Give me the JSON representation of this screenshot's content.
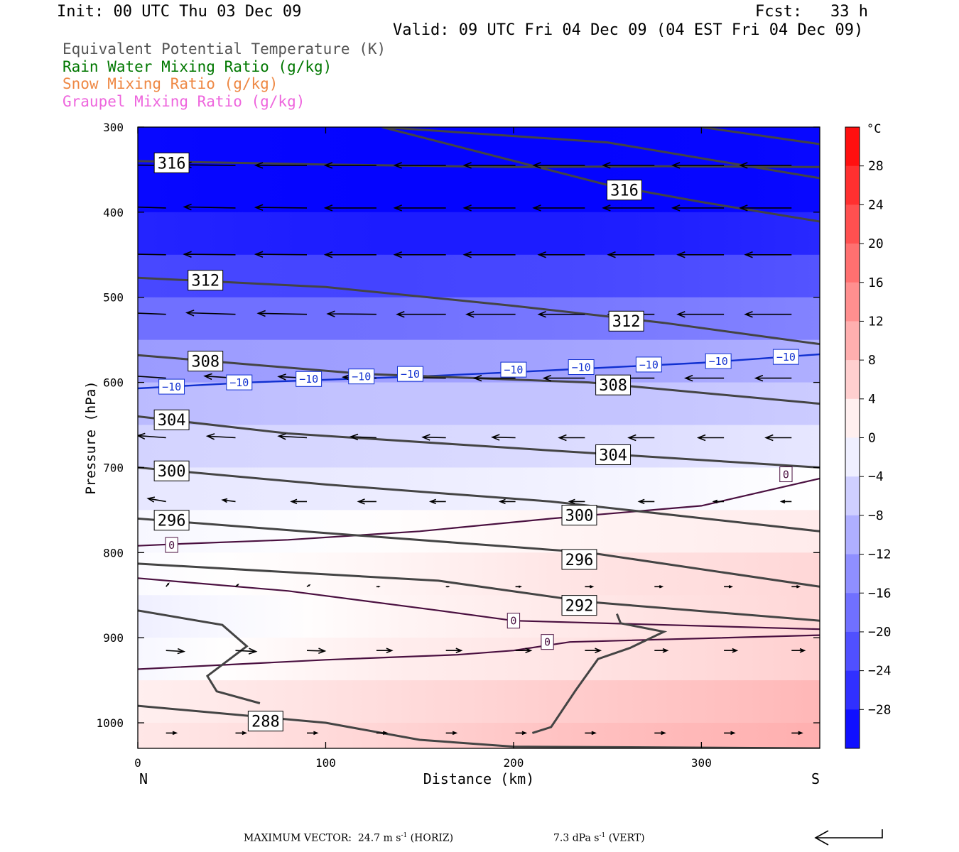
{
  "header": {
    "init": "Init: 00 UTC Thu 03 Dec 09",
    "fcst": "Fcst:   33 h",
    "valid": "Valid: 09 UTC Fri 04 Dec 09 (04 EST Fri 04 Dec 09)"
  },
  "legend": [
    {
      "label": "Equivalent Potential Temperature (K)",
      "color": "#555555"
    },
    {
      "label": "Rain Water Mixing Ratio (g/kg)",
      "color": "#007700"
    },
    {
      "label": "Snow Mixing Ratio (g/kg)",
      "color": "#ee8844"
    },
    {
      "label": "Graupel Mixing Ratio (g/kg)",
      "color": "#ee66dd"
    }
  ],
  "colorbar": {
    "unit": "°C",
    "ticks": [
      "28",
      "24",
      "20",
      "16",
      "12",
      "8",
      "4",
      "0",
      "−4",
      "−8",
      "−12",
      "−16",
      "−20",
      "−24",
      "−28"
    ],
    "range": [
      -32,
      32
    ],
    "step": 4
  },
  "footer": {
    "max_vector": "MAXIMUM VECTOR:",
    "horiz_value": "24.7 m s",
    "horiz_unit": "(HORIZ)",
    "vert_value": "7.3 dPa s",
    "vert_unit": "(VERT)",
    "exponent": "-1"
  },
  "chart_data": {
    "type": "cross-section",
    "xlabel": "Distance (km)",
    "ylabel": "Pressure (hPa)",
    "x_ticks": [
      0,
      100,
      200,
      300
    ],
    "y_ticks": [
      300,
      400,
      500,
      600,
      700,
      800,
      900,
      1000
    ],
    "xlim": [
      0,
      363
    ],
    "ylim": [
      300,
      1030
    ],
    "left_end_label": "N",
    "right_end_label": "S",
    "temperature_field": {
      "x": [
        0,
        120,
        240,
        363
      ],
      "rows": [
        {
          "p": 300,
          "t": [
            -32,
            -32,
            -32,
            -32
          ]
        },
        {
          "p": 400,
          "t": [
            -30,
            -31,
            -31,
            -30
          ]
        },
        {
          "p": 450,
          "t": [
            -25,
            -26,
            -26,
            -24
          ]
        },
        {
          "p": 500,
          "t": [
            -21,
            -21,
            -20,
            -19
          ]
        },
        {
          "p": 550,
          "t": [
            -15,
            -15,
            -14,
            -12
          ]
        },
        {
          "p": 600,
          "t": [
            -10,
            -9,
            -9,
            -8
          ]
        },
        {
          "p": 650,
          "t": [
            -7,
            -6,
            -6,
            -5
          ]
        },
        {
          "p": 700,
          "t": [
            -4,
            -4,
            -3,
            -1
          ]
        },
        {
          "p": 750,
          "t": [
            -2,
            -1,
            0,
            1
          ]
        },
        {
          "p": 800,
          "t": [
            0,
            1,
            3,
            4
          ]
        },
        {
          "p": 850,
          "t": [
            -1,
            1,
            4,
            6
          ]
        },
        {
          "p": 900,
          "t": [
            -3,
            1,
            2,
            4
          ]
        },
        {
          "p": 950,
          "t": [
            1,
            3,
            5,
            8
          ]
        },
        {
          "p": 1000,
          "t": [
            3,
            5,
            8,
            10
          ]
        },
        {
          "p": 1030,
          "t": [
            3,
            5,
            8,
            10
          ]
        }
      ]
    },
    "theta_e_lines": [
      {
        "label": "316",
        "points": [
          [
            0,
            340
          ],
          [
            100,
            344
          ],
          [
            200,
            347
          ],
          [
            280,
            346
          ],
          [
            363,
            347
          ]
        ],
        "labels_at": [
          [
            18,
            342
          ]
        ]
      },
      {
        "label": "316",
        "points": [
          [
            130,
            300
          ],
          [
            250,
            368
          ],
          [
            300,
            388
          ],
          [
            363,
            411
          ]
        ],
        "labels_at": [
          [
            259,
            374
          ]
        ]
      },
      {
        "label": "",
        "points": [
          [
            130,
            300
          ],
          [
            250,
            318
          ],
          [
            363,
            360
          ]
        ],
        "labels_at": []
      },
      {
        "label": "",
        "points": [
          [
            300,
            300
          ],
          [
            363,
            320
          ]
        ],
        "labels_at": []
      },
      {
        "label": "312",
        "points": [
          [
            0,
            477
          ],
          [
            100,
            488
          ],
          [
            200,
            510
          ],
          [
            280,
            530
          ],
          [
            363,
            555
          ]
        ],
        "labels_at": [
          [
            36,
            480
          ],
          [
            260,
            528
          ]
        ]
      },
      {
        "label": "308",
        "points": [
          [
            0,
            568
          ],
          [
            120,
            590
          ],
          [
            240,
            600
          ],
          [
            363,
            625
          ]
        ],
        "labels_at": [
          [
            36,
            575
          ],
          [
            253,
            603
          ]
        ]
      },
      {
        "label": "304",
        "points": [
          [
            0,
            640
          ],
          [
            80,
            660
          ],
          [
            220,
            680
          ],
          [
            363,
            700
          ]
        ],
        "labels_at": [
          [
            18,
            644
          ],
          [
            253,
            685
          ]
        ]
      },
      {
        "label": "300",
        "points": [
          [
            0,
            700
          ],
          [
            100,
            720
          ],
          [
            220,
            740
          ],
          [
            363,
            775
          ]
        ],
        "labels_at": [
          [
            18,
            704
          ],
          [
            235,
            756
          ]
        ]
      },
      {
        "label": "296",
        "points": [
          [
            0,
            760
          ],
          [
            100,
            777
          ],
          [
            240,
            800
          ],
          [
            363,
            840
          ]
        ],
        "labels_at": [
          [
            18,
            762
          ],
          [
            235,
            808
          ]
        ]
      },
      {
        "label": "292",
        "points": [
          [
            0,
            813
          ],
          [
            160,
            833
          ],
          [
            240,
            858
          ],
          [
            363,
            880
          ]
        ],
        "labels_at": [
          [
            235,
            862
          ]
        ]
      },
      {
        "label": "288",
        "points": [
          [
            0,
            980
          ],
          [
            100,
            1000
          ],
          [
            150,
            1020
          ],
          [
            200,
            1028
          ],
          [
            363,
            1030
          ]
        ],
        "labels_at": [
          [
            68,
            998
          ]
        ]
      },
      {
        "label": "",
        "points": [
          [
            0,
            868
          ],
          [
            45,
            885
          ],
          [
            58,
            910
          ],
          [
            37,
            945
          ],
          [
            42,
            963
          ],
          [
            65,
            977
          ]
        ],
        "labels_at": []
      },
      {
        "label": "",
        "points": [
          [
            210,
            1012
          ],
          [
            220,
            1005
          ],
          [
            233,
            962
          ],
          [
            245,
            925
          ],
          [
            262,
            912
          ],
          [
            280,
            893
          ],
          [
            257,
            883
          ],
          [
            255,
            872
          ]
        ],
        "labels_at": []
      }
    ],
    "zero_isotherm_lines": [
      {
        "points": [
          [
            0,
            792
          ],
          [
            20,
            790
          ],
          [
            80,
            785
          ],
          [
            150,
            775
          ],
          [
            220,
            760
          ],
          [
            300,
            745
          ],
          [
            363,
            713
          ]
        ],
        "labels_at": [
          [
            18,
            791
          ],
          [
            345,
            708
          ]
        ]
      },
      {
        "points": [
          [
            0,
            830
          ],
          [
            80,
            845
          ],
          [
            160,
            868
          ],
          [
            200,
            880
          ],
          [
            363,
            890
          ]
        ],
        "labels_at": [
          [
            200,
            880
          ]
        ]
      },
      {
        "points": [
          [
            0,
            937
          ],
          [
            100,
            926
          ],
          [
            170,
            920
          ],
          [
            200,
            915
          ],
          [
            230,
            905
          ],
          [
            363,
            897
          ]
        ],
        "labels_at": [
          [
            218,
            905
          ]
        ]
      }
    ],
    "minus10_isotherm": {
      "label": "−10",
      "points": [
        [
          0,
          607
        ],
        [
          60,
          600
        ],
        [
          150,
          593
        ],
        [
          200,
          588
        ],
        [
          300,
          577
        ],
        [
          363,
          567
        ]
      ],
      "labels_at": [
        [
          18,
          605
        ],
        [
          54,
          600
        ],
        [
          91,
          596
        ],
        [
          119,
          593
        ],
        [
          145,
          590
        ],
        [
          200,
          585
        ],
        [
          236,
          582
        ],
        [
          272,
          579
        ],
        [
          309,
          575
        ],
        [
          345,
          570
        ]
      ]
    },
    "wind_vectors": {
      "x": [
        15,
        52,
        90,
        127,
        164,
        201,
        238,
        275,
        312,
        348
      ],
      "levels": [
        {
          "p": 345,
          "u": [
            -1.0,
            -1.0,
            -1.0,
            -1.0,
            -1.0,
            -1.0,
            -1.0,
            -1.0,
            -1.0,
            -1.0
          ],
          "w": [
            0.01,
            0.01,
            0.0,
            0.0,
            0.0,
            0.0,
            0.0,
            0.0,
            0.0,
            0.0
          ]
        },
        {
          "p": 395,
          "u": [
            -1.0,
            -1.0,
            -1.0,
            -1.0,
            -1.0,
            -1.0,
            -1.0,
            -1.0,
            -1.0,
            -1.0
          ],
          "w": [
            0.03,
            0.02,
            0.01,
            0.0,
            0.0,
            0.0,
            0.0,
            0.0,
            0.0,
            0.0
          ]
        },
        {
          "p": 450,
          "u": [
            -1.0,
            -1.0,
            -1.0,
            -1.0,
            -1.0,
            -1.0,
            -0.9,
            -0.9,
            -0.9,
            -0.9
          ],
          "w": [
            0.02,
            0.01,
            0.01,
            0.0,
            0.0,
            0.0,
            0.0,
            0.0,
            0.0,
            0.0
          ]
        },
        {
          "p": 520,
          "u": [
            -0.95,
            -0.95,
            -0.95,
            -0.95,
            -0.95,
            -0.95,
            -0.9,
            -0.9,
            -0.9,
            -0.9
          ],
          "w": [
            0.04,
            0.03,
            0.02,
            0.01,
            0.0,
            0.0,
            0.0,
            0.0,
            0.0,
            0.0
          ]
        },
        {
          "p": 595,
          "u": [
            -0.75,
            -0.6,
            -0.55,
            -0.65,
            -0.75,
            -0.8,
            -0.8,
            -0.8,
            -0.75,
            -0.7
          ],
          "w": [
            0.05,
            0.04,
            0.03,
            0.02,
            0.01,
            0.0,
            0.0,
            0.0,
            0.0,
            0.0
          ]
        },
        {
          "p": 665,
          "u": [
            -0.55,
            -0.55,
            -0.55,
            -0.5,
            -0.45,
            -0.45,
            -0.5,
            -0.5,
            -0.5,
            -0.5
          ],
          "w": [
            0.04,
            0.03,
            0.03,
            0.02,
            0.01,
            0.01,
            0.0,
            0.0,
            0.0,
            0.0
          ]
        },
        {
          "p": 740,
          "u": [
            -0.35,
            -0.25,
            -0.3,
            -0.35,
            -0.3,
            -0.3,
            -0.3,
            -0.3,
            -0.2,
            -0.2
          ],
          "w": [
            0.06,
            0.03,
            0.0,
            0.0,
            0.0,
            0.0,
            0.0,
            0.0,
            0.0,
            0.0
          ]
        },
        {
          "p": 840,
          "u": [
            0.05,
            0.05,
            0.05,
            0.05,
            0.05,
            0.1,
            0.15,
            0.15,
            0.15,
            0.15
          ],
          "w": [
            0.06,
            0.04,
            0.03,
            0.0,
            0.0,
            0.0,
            0.0,
            0.0,
            0.0,
            0.0
          ]
        },
        {
          "p": 915,
          "u": [
            0.35,
            0.4,
            0.35,
            0.3,
            0.3,
            0.3,
            0.3,
            0.25,
            0.25,
            0.25
          ],
          "w": [
            -0.02,
            -0.02,
            -0.01,
            0.0,
            0.0,
            0.0,
            0.0,
            0.0,
            0.0,
            0.0
          ]
        },
        {
          "p": 1012,
          "u": [
            0.2,
            0.2,
            0.2,
            0.2,
            0.2,
            0.2,
            0.2,
            0.2,
            0.2,
            0.2
          ],
          "w": [
            0.0,
            0.0,
            0.0,
            0.0,
            0.0,
            0.0,
            0.0,
            0.0,
            0.0,
            0.0
          ]
        }
      ]
    }
  }
}
